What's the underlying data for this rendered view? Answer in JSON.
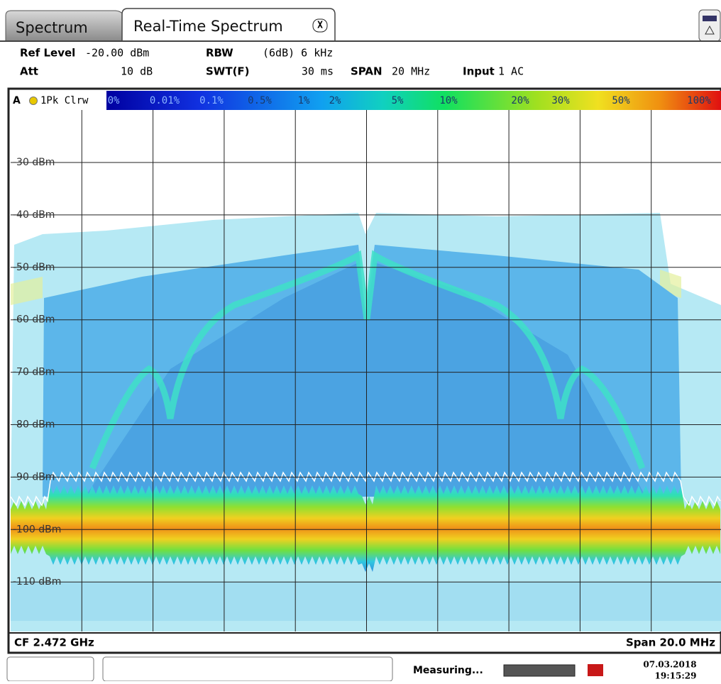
{
  "tabs": [
    {
      "label": "Spectrum"
    },
    {
      "label": "Real-Time Spectrum"
    }
  ],
  "close_button": "X",
  "settings": {
    "ref_level": {
      "label": "Ref Level",
      "value": "-20.00 dBm"
    },
    "rbw": {
      "label": "RBW",
      "value": "(6dB) 6 kHz"
    },
    "att": {
      "label": "Att",
      "value": "10 dB"
    },
    "swt": {
      "label": "SWT(F)",
      "value": "30 ms"
    },
    "span": {
      "label": "SPAN",
      "value": "20 MHz"
    },
    "input": {
      "label": "Input",
      "value": "1 AC"
    }
  },
  "trace": {
    "window": "A",
    "label": "1Pk Clrw"
  },
  "color_scale": [
    "0%",
    "0.01%",
    "0.1%",
    "0.5%",
    "1%",
    "2%",
    "5%",
    "10%",
    "20%",
    "30%",
    "50%",
    "100%"
  ],
  "y_axis_labels": [
    "-30 dBm",
    "-40 dBm",
    "-50 dBm",
    "-60 dBm",
    "-70 dBm",
    "-80 dBm",
    "-90 dBm",
    "-100 dBm",
    "-110 dBm"
  ],
  "footer": {
    "center_frequency": "CF 2.472 GHz",
    "span": "Span 20.0 MHz"
  },
  "status": {
    "message": "Measuring...",
    "date": "07.03.2018",
    "time": "19:15:29"
  }
}
